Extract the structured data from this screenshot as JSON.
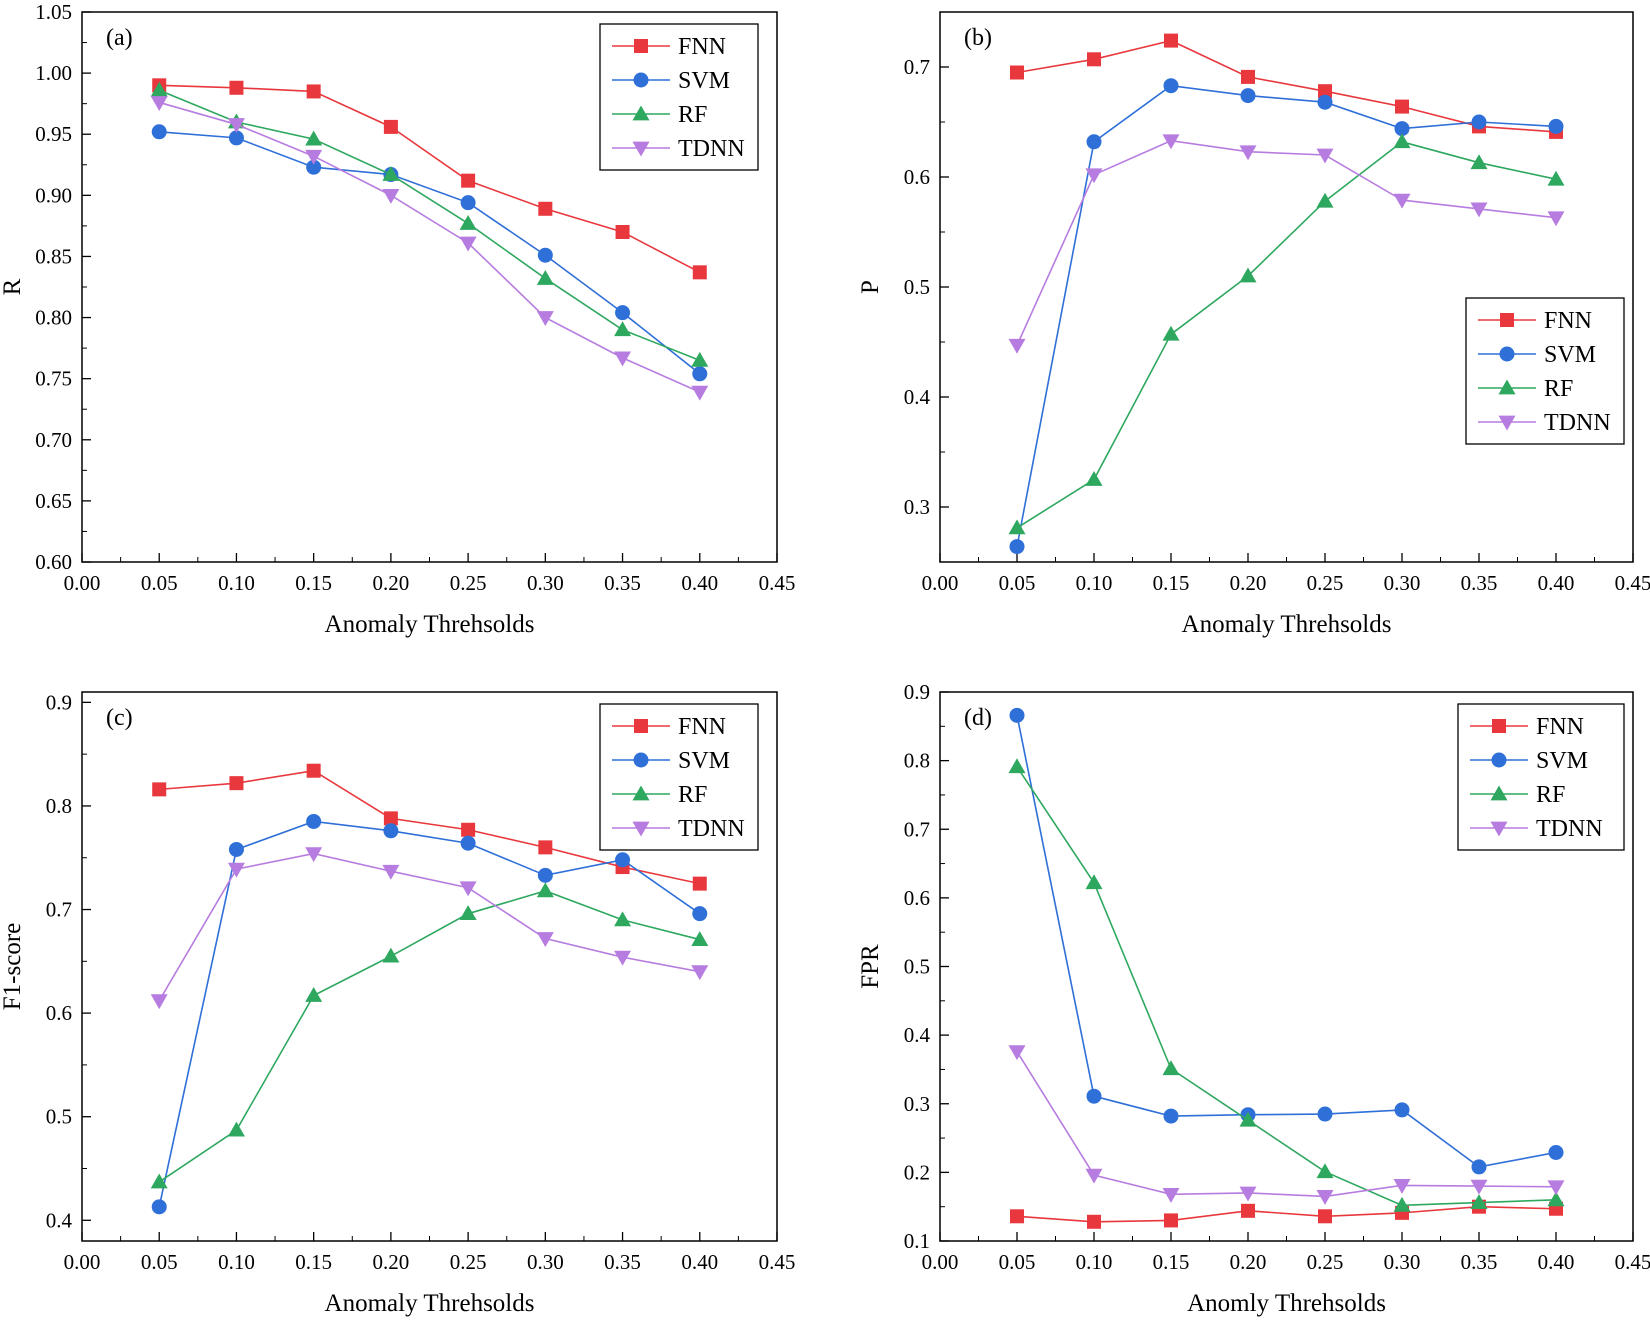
{
  "figure": {
    "series_styles": {
      "FNN": {
        "color": "#e8383d",
        "marker": "square"
      },
      "SVM": {
        "color": "#2e6fd8",
        "marker": "circle"
      },
      "RF": {
        "color": "#2ea85f",
        "marker": "triangle-up"
      },
      "TDNN": {
        "color": "#b77ce0",
        "marker": "triangle-down"
      }
    }
  },
  "chart_data": [
    {
      "panel": "(a)",
      "type": "line",
      "title": "",
      "xlabel": "Anomaly Threhsolds",
      "ylabel": "R",
      "xlim": [
        0.0,
        0.45
      ],
      "ylim": [
        0.6,
        1.05
      ],
      "xticks": [
        "0.00",
        "0.05",
        "0.10",
        "0.15",
        "0.20",
        "0.25",
        "0.30",
        "0.35",
        "0.40",
        "0.45"
      ],
      "yticks": [
        "0.60",
        "0.65",
        "0.70",
        "0.75",
        "0.80",
        "0.85",
        "0.90",
        "0.95",
        "1.00",
        "1.05"
      ],
      "legend_position": "top-right",
      "x": [
        0.05,
        0.1,
        0.15,
        0.2,
        0.25,
        0.3,
        0.35,
        0.4
      ],
      "series": [
        {
          "name": "FNN",
          "values": [
            0.99,
            0.988,
            0.985,
            0.956,
            0.912,
            0.889,
            0.87,
            0.837
          ]
        },
        {
          "name": "SVM",
          "values": [
            0.952,
            0.947,
            0.923,
            0.917,
            0.894,
            0.851,
            0.804,
            0.754
          ]
        },
        {
          "name": "RF",
          "values": [
            0.986,
            0.96,
            0.946,
            0.917,
            0.877,
            0.832,
            0.79,
            0.765
          ]
        },
        {
          "name": "TDNN",
          "values": [
            0.976,
            0.958,
            0.932,
            0.9,
            0.861,
            0.8,
            0.767,
            0.739
          ]
        }
      ]
    },
    {
      "panel": "(b)",
      "type": "line",
      "title": "",
      "xlabel": "Anomaly Threhsolds",
      "ylabel": "P",
      "xlim": [
        0.0,
        0.45
      ],
      "ylim": [
        0.25,
        0.75
      ],
      "xticks": [
        "0.00",
        "0.05",
        "0.10",
        "0.15",
        "0.20",
        "0.25",
        "0.30",
        "0.35",
        "0.40",
        "0.45"
      ],
      "yticks": [
        "0.3",
        "0.4",
        "0.5",
        "0.6",
        "0.7"
      ],
      "legend_position": "center-right",
      "x": [
        0.05,
        0.1,
        0.15,
        0.2,
        0.25,
        0.3,
        0.35,
        0.4
      ],
      "series": [
        {
          "name": "FNN",
          "values": [
            0.695,
            0.707,
            0.724,
            0.691,
            0.678,
            0.664,
            0.646,
            0.641
          ]
        },
        {
          "name": "SVM",
          "values": [
            0.264,
            0.632,
            0.683,
            0.674,
            0.668,
            0.644,
            0.65,
            0.646
          ]
        },
        {
          "name": "RF",
          "values": [
            0.281,
            0.325,
            0.457,
            0.51,
            0.578,
            0.632,
            0.613,
            0.598
          ]
        },
        {
          "name": "TDNN",
          "values": [
            0.447,
            0.602,
            0.633,
            0.623,
            0.62,
            0.579,
            0.571,
            0.563
          ]
        }
      ]
    },
    {
      "panel": "(c)",
      "type": "line",
      "title": "",
      "xlabel": "Anomaly Threhsolds",
      "ylabel": "F1-score",
      "xlim": [
        0.0,
        0.45
      ],
      "ylim": [
        0.38,
        0.91
      ],
      "xticks": [
        "0.00",
        "0.05",
        "0.10",
        "0.15",
        "0.20",
        "0.25",
        "0.30",
        "0.35",
        "0.40",
        "0.45"
      ],
      "yticks": [
        "0.4",
        "0.5",
        "0.6",
        "0.7",
        "0.8",
        "0.9"
      ],
      "legend_position": "top-right",
      "x": [
        0.05,
        0.1,
        0.15,
        0.2,
        0.25,
        0.3,
        0.35,
        0.4
      ],
      "series": [
        {
          "name": "FNN",
          "values": [
            0.816,
            0.822,
            0.834,
            0.788,
            0.777,
            0.76,
            0.741,
            0.725
          ]
        },
        {
          "name": "SVM",
          "values": [
            0.413,
            0.758,
            0.785,
            0.776,
            0.764,
            0.733,
            0.748,
            0.696
          ]
        },
        {
          "name": "RF",
          "values": [
            0.437,
            0.487,
            0.617,
            0.655,
            0.696,
            0.718,
            0.69,
            0.671
          ]
        },
        {
          "name": "TDNN",
          "values": [
            0.612,
            0.739,
            0.754,
            0.737,
            0.721,
            0.672,
            0.654,
            0.64
          ]
        }
      ]
    },
    {
      "panel": "(d)",
      "type": "line",
      "title": "",
      "xlabel": "Anomly Threhsolds",
      "ylabel": "FPR",
      "xlim": [
        0.0,
        0.45
      ],
      "ylim": [
        0.1,
        0.9
      ],
      "xticks": [
        "0.00",
        "0.05",
        "0.10",
        "0.15",
        "0.20",
        "0.25",
        "0.30",
        "0.35",
        "0.40",
        "0.45"
      ],
      "yticks": [
        "0.1",
        "0.2",
        "0.3",
        "0.4",
        "0.5",
        "0.6",
        "0.7",
        "0.8",
        "0.9"
      ],
      "legend_position": "top-right",
      "x": [
        0.05,
        0.1,
        0.15,
        0.2,
        0.25,
        0.3,
        0.35,
        0.4
      ],
      "series": [
        {
          "name": "FNN",
          "values": [
            0.136,
            0.128,
            0.13,
            0.144,
            0.136,
            0.141,
            0.15,
            0.147
          ]
        },
        {
          "name": "SVM",
          "values": [
            0.866,
            0.311,
            0.282,
            0.284,
            0.285,
            0.291,
            0.208,
            0.229
          ]
        },
        {
          "name": "RF",
          "values": [
            0.791,
            0.622,
            0.351,
            0.276,
            0.201,
            0.152,
            0.156,
            0.16
          ]
        },
        {
          "name": "TDNN",
          "values": [
            0.376,
            0.196,
            0.168,
            0.17,
            0.165,
            0.181,
            0.18,
            0.179
          ]
        }
      ]
    }
  ]
}
